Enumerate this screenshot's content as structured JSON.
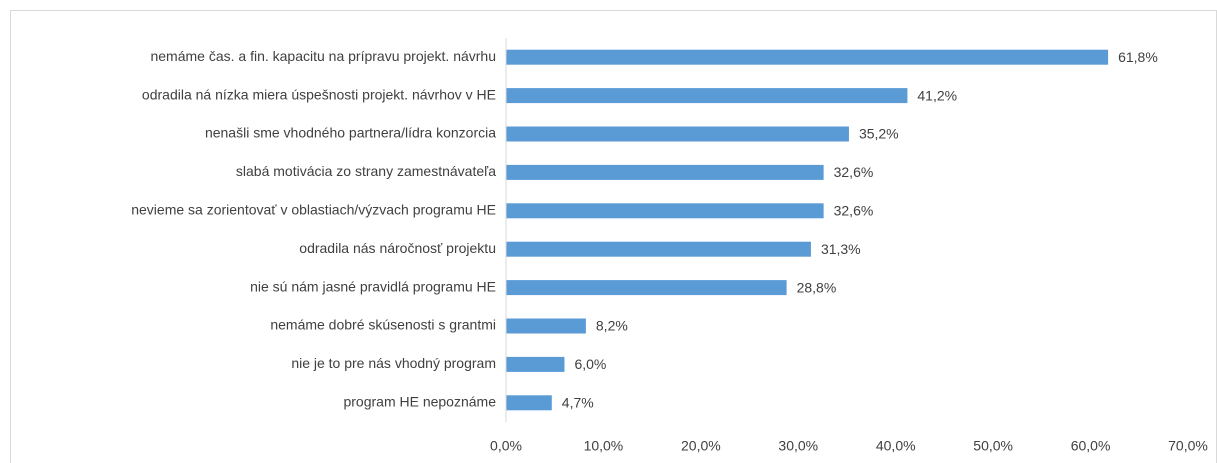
{
  "chart_data": {
    "type": "bar",
    "orientation": "horizontal",
    "categories": [
      "nemáme čas. a fin. kapacitu na prípravu projekt. návrhu",
      "odradila ná nízka miera úspešnosti projekt. návrhov v HE",
      "nenašli sme vhodného partnera/lídra konzorcia",
      "slabá motivácia zo strany zamestnávateľa",
      "nevieme sa zorientovať v oblastiach/výzvach programu HE",
      "odradila nás náročnosť projektu",
      "nie sú nám jasné pravidlá programu HE",
      "nemáme dobré skúsenosti s grantmi",
      "nie je to pre nás vhodný program",
      "program HE nepoznáme"
    ],
    "values": [
      61.8,
      41.2,
      35.2,
      32.6,
      32.6,
      31.3,
      28.8,
      8.2,
      6.0,
      4.7
    ],
    "value_labels": [
      "61,8%",
      "41,2%",
      "35,2%",
      "32,6%",
      "32,6%",
      "31,3%",
      "28,8%",
      "8,2%",
      "6,0%",
      "4,7%"
    ],
    "color": "#5b9bd5",
    "xlim": [
      0,
      70
    ],
    "xticks": [
      {
        "value": 0,
        "label": "0,0%"
      },
      {
        "value": 10,
        "label": "10,0%"
      },
      {
        "value": 20,
        "label": "20,0%"
      },
      {
        "value": 30,
        "label": "30,0%"
      },
      {
        "value": 40,
        "label": "40,0%"
      },
      {
        "value": 50,
        "label": "50,0%"
      },
      {
        "value": 60,
        "label": "60,0%"
      },
      {
        "value": 70,
        "label": "70,0%"
      }
    ],
    "grid": false
  }
}
